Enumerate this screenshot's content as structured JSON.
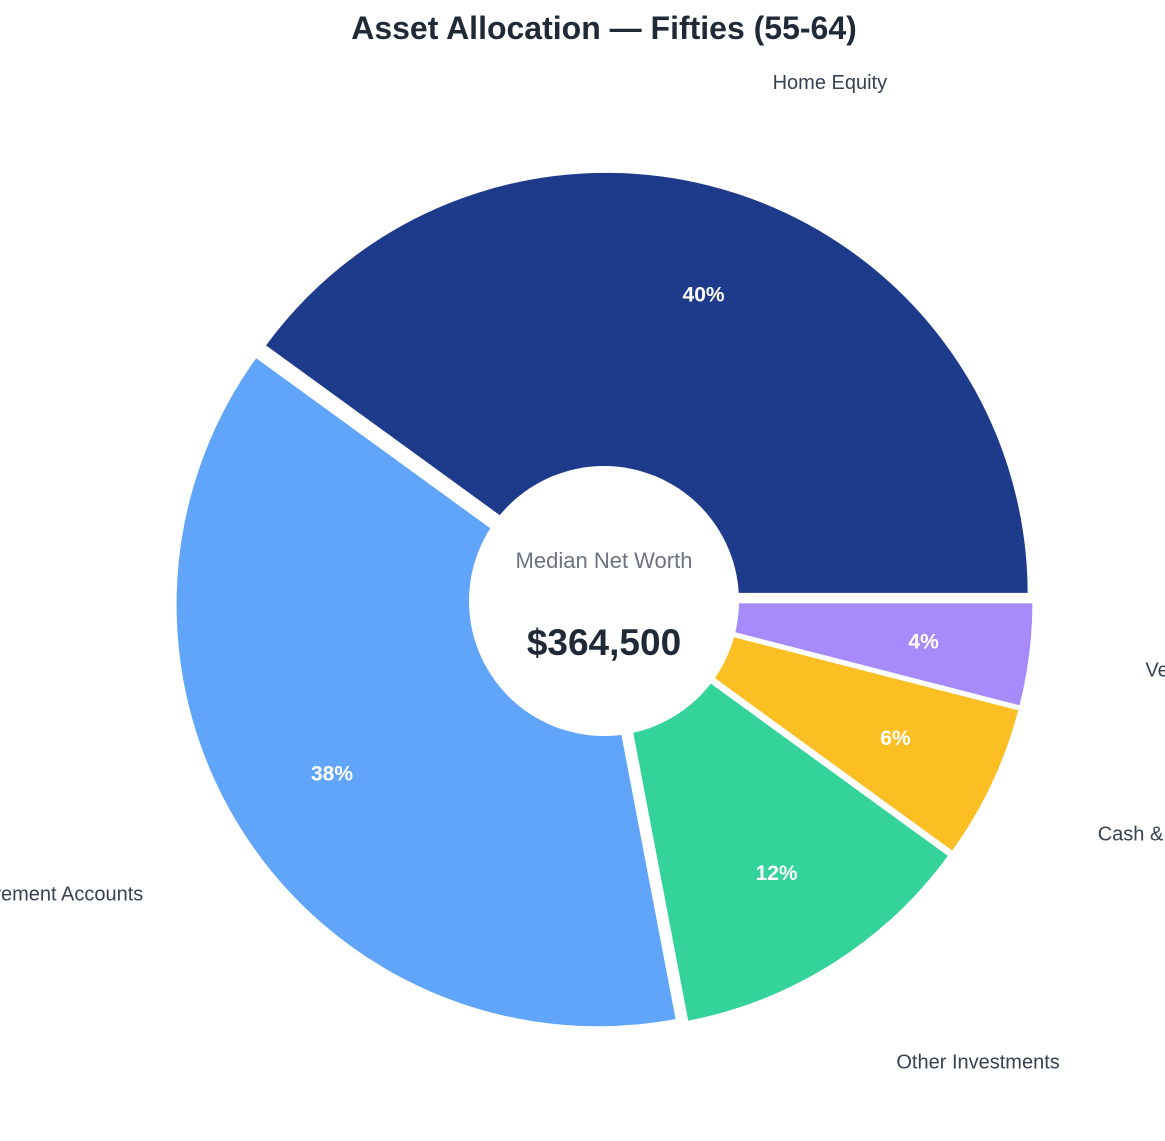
{
  "chart_data": {
    "type": "pie",
    "title": "Asset Allocation — Fifties (55-64)",
    "center": {
      "caption": "Median Net Worth",
      "value": "$364,500"
    },
    "slices": [
      {
        "label": "Home Equity",
        "value": 40,
        "display": "40%",
        "color": "#1e3a8a"
      },
      {
        "label": "Retirement Accounts",
        "value": 38,
        "display": "38%",
        "color": "#60a5fa"
      },
      {
        "label": "Other Investments",
        "value": 12,
        "display": "12%",
        "color": "#34d399"
      },
      {
        "label": "Cash & Bank",
        "value": 6,
        "display": "6%",
        "color": "#fbbf24"
      },
      {
        "label": "Vehicles",
        "value": 4,
        "display": "4%",
        "color": "#a78bfa"
      }
    ]
  }
}
